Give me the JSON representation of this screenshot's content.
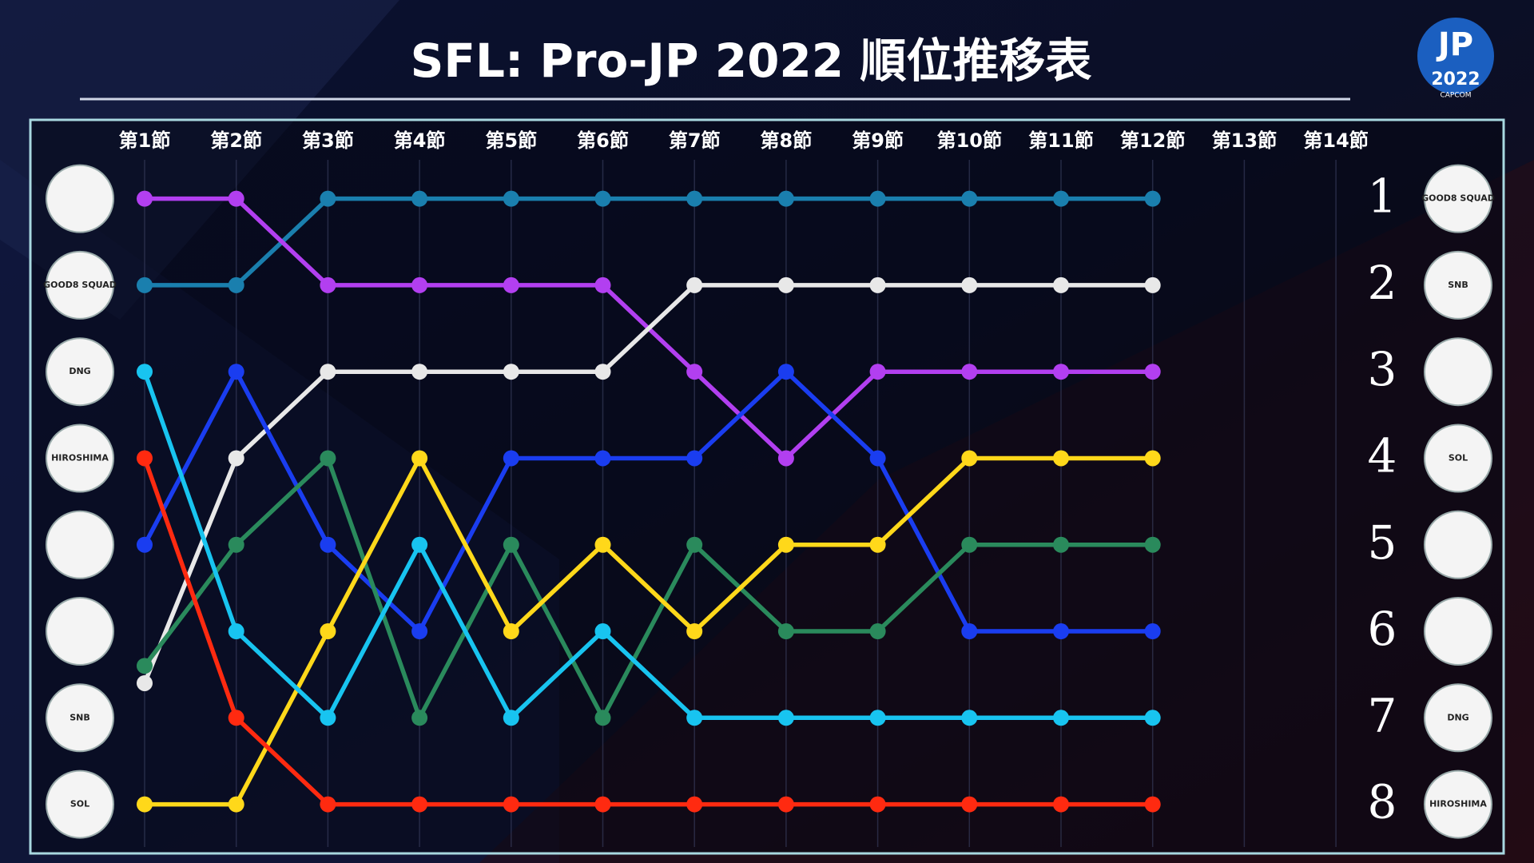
{
  "chart_data": {
    "type": "bump",
    "title": "SFL: Pro-JP 2022  順位推移表",
    "logo": {
      "mark": "JP",
      "year": "2022",
      "maker": "CAPCOM"
    },
    "badges_left": [
      null,
      "GOOD8 SQUAD",
      "DNG",
      "HIROSHIMA",
      null,
      null,
      "SNB",
      "SOL"
    ],
    "badges_right": [
      "GOOD8 SQUAD",
      "SNB",
      null,
      "SOL",
      null,
      null,
      "DNG",
      "HIROSHIMA"
    ],
    "categories": [
      "第1節",
      "第2節",
      "第3節",
      "第4節",
      "第5節",
      "第6節",
      "第7節",
      "第8節",
      "第9節",
      "第10節",
      "第11節",
      "第12節",
      "第13節",
      "第14節"
    ],
    "ylim": [
      0.5,
      8.5
    ],
    "y_inverted": true,
    "yticks": [
      1,
      2,
      3,
      4,
      5,
      6,
      7,
      8
    ],
    "grid": true,
    "series": [
      {
        "color": "#1a7fae",
        "values": [
          2,
          2,
          1,
          1,
          1,
          1,
          1,
          1,
          1,
          1,
          1,
          1,
          null,
          null
        ]
      },
      {
        "color": "#b23ff0",
        "values": [
          1,
          1,
          2,
          2,
          2,
          2,
          3,
          4,
          3,
          3,
          3,
          3,
          null,
          null
        ]
      },
      {
        "color": "#e8e8e8",
        "values": [
          6.6,
          4,
          3,
          3,
          3,
          3,
          2,
          2,
          2,
          2,
          2,
          2,
          null,
          null
        ]
      },
      {
        "color": "#1a3df0",
        "values": [
          5,
          3,
          5,
          6,
          4,
          4,
          4,
          3,
          4,
          6,
          6,
          6,
          null,
          null
        ]
      },
      {
        "color": "#2a8a5c",
        "values": [
          6.4,
          5,
          4,
          7,
          5,
          7,
          5,
          6,
          6,
          5,
          5,
          5,
          null,
          null
        ]
      },
      {
        "color": "#ffd81a",
        "values": [
          8,
          8,
          6,
          4,
          6,
          5,
          6,
          5,
          5,
          4,
          4,
          4,
          null,
          null
        ]
      },
      {
        "color": "#18c4f0",
        "values": [
          3,
          6,
          7,
          5,
          7,
          6,
          7,
          7,
          7,
          7,
          7,
          7,
          null,
          null
        ]
      },
      {
        "color": "#ff2a10",
        "values": [
          4,
          7,
          8,
          8,
          8,
          8,
          8,
          8,
          8,
          8,
          8,
          8,
          null,
          null
        ]
      }
    ]
  }
}
